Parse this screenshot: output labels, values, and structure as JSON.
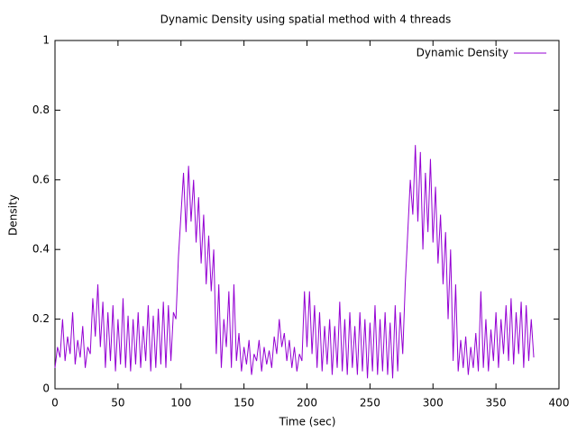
{
  "chart_data": {
    "type": "line",
    "title": "Dynamic Density using spatial method with 4 threads",
    "x_label": "Time (sec)",
    "y_label": "Density",
    "x": [
      0,
      2,
      4,
      6,
      8,
      10,
      12,
      14,
      16,
      18,
      20,
      22,
      24,
      26,
      28,
      30,
      32,
      34,
      36,
      38,
      40,
      42,
      44,
      46,
      48,
      50,
      52,
      54,
      56,
      58,
      60,
      62,
      64,
      66,
      68,
      70,
      72,
      74,
      76,
      78,
      80,
      82,
      84,
      86,
      88,
      90,
      92,
      94,
      96,
      98,
      100,
      102,
      104,
      106,
      108,
      110,
      112,
      114,
      116,
      118,
      120,
      122,
      124,
      126,
      128,
      130,
      132,
      134,
      136,
      138,
      140,
      142,
      144,
      146,
      148,
      150,
      152,
      154,
      156,
      158,
      160,
      162,
      164,
      166,
      168,
      170,
      172,
      174,
      176,
      178,
      180,
      182,
      184,
      186,
      188,
      190,
      192,
      194,
      196,
      198,
      200,
      202,
      204,
      206,
      208,
      210,
      212,
      214,
      216,
      218,
      220,
      222,
      224,
      226,
      228,
      230,
      232,
      234,
      236,
      238,
      240,
      242,
      244,
      246,
      248,
      250,
      252,
      254,
      256,
      258,
      260,
      262,
      264,
      266,
      268,
      270,
      272,
      274,
      276,
      278,
      280,
      282,
      284,
      286,
      288,
      290,
      292,
      294,
      296,
      298,
      300,
      302,
      304,
      306,
      308,
      310,
      312,
      314,
      316,
      318,
      320,
      322,
      324,
      326,
      328,
      330,
      332,
      334,
      336,
      338,
      340,
      342,
      344,
      346,
      348,
      350,
      352,
      354,
      356,
      358,
      360,
      362,
      364,
      366,
      368,
      370,
      372,
      374,
      376,
      378,
      380
    ],
    "series": [
      {
        "name": "Dynamic Density",
        "color": "#9400d3",
        "values": [
          0.06,
          0.12,
          0.09,
          0.2,
          0.08,
          0.15,
          0.1,
          0.22,
          0.07,
          0.14,
          0.09,
          0.18,
          0.06,
          0.12,
          0.1,
          0.26,
          0.15,
          0.3,
          0.12,
          0.25,
          0.06,
          0.22,
          0.08,
          0.24,
          0.05,
          0.2,
          0.07,
          0.26,
          0.06,
          0.21,
          0.05,
          0.2,
          0.07,
          0.22,
          0.06,
          0.18,
          0.08,
          0.24,
          0.05,
          0.21,
          0.06,
          0.23,
          0.07,
          0.25,
          0.06,
          0.24,
          0.08,
          0.22,
          0.2,
          0.38,
          0.5,
          0.62,
          0.45,
          0.64,
          0.48,
          0.6,
          0.42,
          0.55,
          0.36,
          0.5,
          0.3,
          0.44,
          0.28,
          0.4,
          0.1,
          0.3,
          0.06,
          0.2,
          0.12,
          0.28,
          0.06,
          0.3,
          0.08,
          0.16,
          0.05,
          0.12,
          0.07,
          0.14,
          0.04,
          0.1,
          0.08,
          0.14,
          0.05,
          0.12,
          0.07,
          0.11,
          0.06,
          0.15,
          0.1,
          0.2,
          0.12,
          0.16,
          0.08,
          0.14,
          0.06,
          0.12,
          0.05,
          0.1,
          0.08,
          0.28,
          0.12,
          0.28,
          0.1,
          0.24,
          0.06,
          0.22,
          0.05,
          0.18,
          0.07,
          0.2,
          0.04,
          0.18,
          0.06,
          0.25,
          0.05,
          0.2,
          0.04,
          0.22,
          0.06,
          0.18,
          0.04,
          0.22,
          0.05,
          0.2,
          0.03,
          0.19,
          0.05,
          0.24,
          0.04,
          0.2,
          0.05,
          0.22,
          0.04,
          0.19,
          0.03,
          0.24,
          0.05,
          0.22,
          0.1,
          0.3,
          0.45,
          0.6,
          0.5,
          0.7,
          0.48,
          0.68,
          0.4,
          0.62,
          0.45,
          0.66,
          0.42,
          0.58,
          0.36,
          0.5,
          0.3,
          0.45,
          0.2,
          0.4,
          0.08,
          0.3,
          0.05,
          0.14,
          0.06,
          0.15,
          0.04,
          0.12,
          0.06,
          0.16,
          0.05,
          0.28,
          0.06,
          0.2,
          0.05,
          0.17,
          0.08,
          0.22,
          0.06,
          0.2,
          0.1,
          0.24,
          0.08,
          0.26,
          0.07,
          0.22,
          0.1,
          0.25,
          0.06,
          0.24,
          0.08,
          0.2,
          0.09
        ]
      }
    ],
    "xlim": [
      0,
      400
    ],
    "xticks": [
      0,
      50,
      100,
      150,
      200,
      250,
      300,
      350,
      400
    ],
    "ylim": [
      0,
      1
    ],
    "yticks": [
      0,
      0.2,
      0.4,
      0.6,
      0.8,
      1
    ],
    "legend": "top-right"
  }
}
